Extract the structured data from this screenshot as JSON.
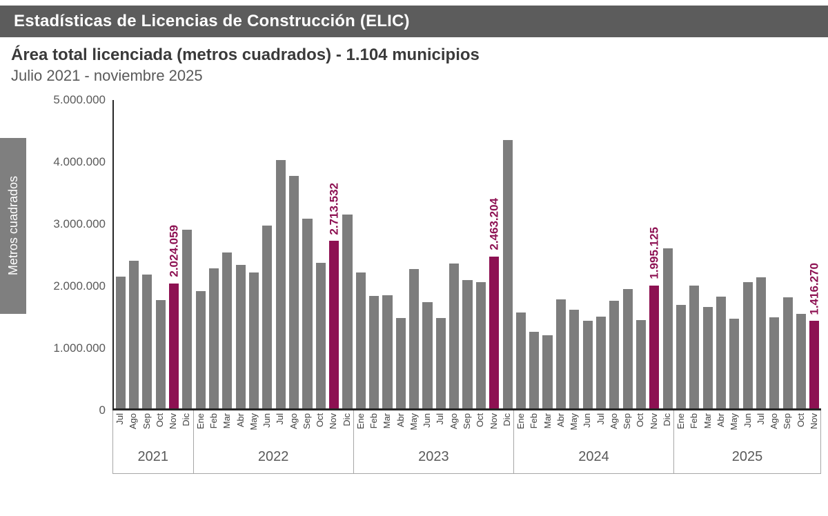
{
  "header": {
    "title": "Estadísticas de Licencias de Construcción (ELIC)"
  },
  "subtitle": {
    "line1": "Área total licenciada (metros cuadrados) - 1.104 municipios",
    "line2": "Julio 2021 - noviembre 2025"
  },
  "colors": {
    "header_bg": "#5c5c5c",
    "ylabel_box_bg": "#7f7f7f",
    "bar_gray": "#7d7d7d",
    "highlight_berry": "#8d1152"
  },
  "chart_data": {
    "type": "bar",
    "title": "Área total licenciada (metros cuadrados) - 1.104 municipios",
    "subtitle": "Julio 2021 - noviembre 2025",
    "xlabel": "",
    "ylabel": "Metros cuadrados",
    "ylim": [
      0,
      5000000
    ],
    "y_tick_labels": [
      "5.000.000",
      "4.000.000",
      "3.000.000",
      "2.000.000",
      "1.000.000",
      "0"
    ],
    "grid": false,
    "legend": false,
    "bar_color": "#7d7d7d",
    "highlight_color": "#8d1152",
    "groups": [
      {
        "year": "2021",
        "months": [
          "Jul",
          "Ago",
          "Sep",
          "Oct",
          "Nov",
          "Dic"
        ],
        "values": [
          2140000,
          2390000,
          2170000,
          1760000,
          2024059,
          2900000
        ],
        "highlight_month": "Nov",
        "highlight_label": "2.024.059"
      },
      {
        "year": "2022",
        "months": [
          "Ene",
          "Feb",
          "Mar",
          "Abr",
          "May",
          "Jun",
          "Jul",
          "Ago",
          "Sep",
          "Oct",
          "Nov",
          "Dic"
        ],
        "values": [
          1900000,
          2270000,
          2530000,
          2330000,
          2200000,
          2960000,
          4030000,
          3770000,
          3080000,
          2360000,
          2713532,
          3140000
        ],
        "highlight_month": "Nov",
        "highlight_label": "2.713.532"
      },
      {
        "year": "2023",
        "months": [
          "Ene",
          "Feb",
          "Mar",
          "Abr",
          "May",
          "Jun",
          "Jul",
          "Ago",
          "Sep",
          "Oct",
          "Nov",
          "Dic"
        ],
        "values": [
          2200000,
          1820000,
          1830000,
          1470000,
          2260000,
          1720000,
          1470000,
          2350000,
          2080000,
          2050000,
          2463204,
          4350000
        ],
        "highlight_month": "Nov",
        "highlight_label": "2.463.204"
      },
      {
        "year": "2024",
        "months": [
          "Ene",
          "Feb",
          "Mar",
          "Abr",
          "May",
          "Jun",
          "Jul",
          "Ago",
          "Sep",
          "Oct",
          "Nov",
          "Dic"
        ],
        "values": [
          1560000,
          1240000,
          1190000,
          1770000,
          1600000,
          1420000,
          1490000,
          1740000,
          1930000,
          1430000,
          1995125,
          2590000
        ],
        "highlight_month": "Nov",
        "highlight_label": "1.995.125"
      },
      {
        "year": "2025",
        "months": [
          "Ene",
          "Feb",
          "Mar",
          "Abr",
          "May",
          "Jun",
          "Jul",
          "Ago",
          "Sep",
          "Oct",
          "Nov"
        ],
        "values": [
          1680000,
          1990000,
          1650000,
          1810000,
          1450000,
          2050000,
          2130000,
          1480000,
          1800000,
          1530000,
          1416270
        ],
        "highlight_month": "Nov",
        "highlight_label": "1.416.270"
      }
    ]
  }
}
